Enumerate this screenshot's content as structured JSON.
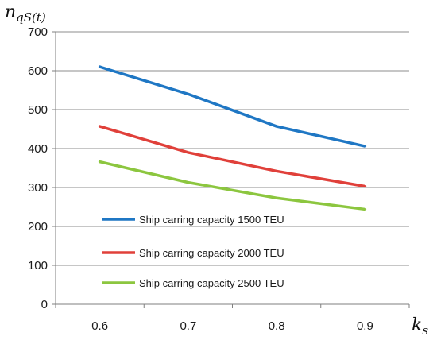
{
  "chart_data": {
    "type": "line",
    "xlabel": "k",
    "xlabel_sub": "s",
    "ylabel": "n",
    "ylabel_sub": "qS(t)",
    "x": [
      0.6,
      0.7,
      0.8,
      0.9
    ],
    "x_tick_labels": [
      "0.6",
      "0.7",
      "0.8",
      "0.9"
    ],
    "ylim": [
      0,
      700
    ],
    "y_ticks": [
      0,
      100,
      200,
      300,
      400,
      500,
      600,
      700
    ],
    "grid": "horizontal",
    "legend_position": "inside-bottom-left",
    "series": [
      {
        "name": "Ship carring capacity 1500 TEU",
        "color": "#1f77c4",
        "values": [
          610,
          540,
          457,
          406
        ]
      },
      {
        "name": "Ship carring capacity 2000 TEU",
        "color": "#e0403a",
        "values": [
          457,
          390,
          342,
          303
        ]
      },
      {
        "name": "Ship carring capacity 2500 TEU",
        "color": "#8cc63f",
        "values": [
          366,
          313,
          273,
          244
        ]
      }
    ]
  }
}
